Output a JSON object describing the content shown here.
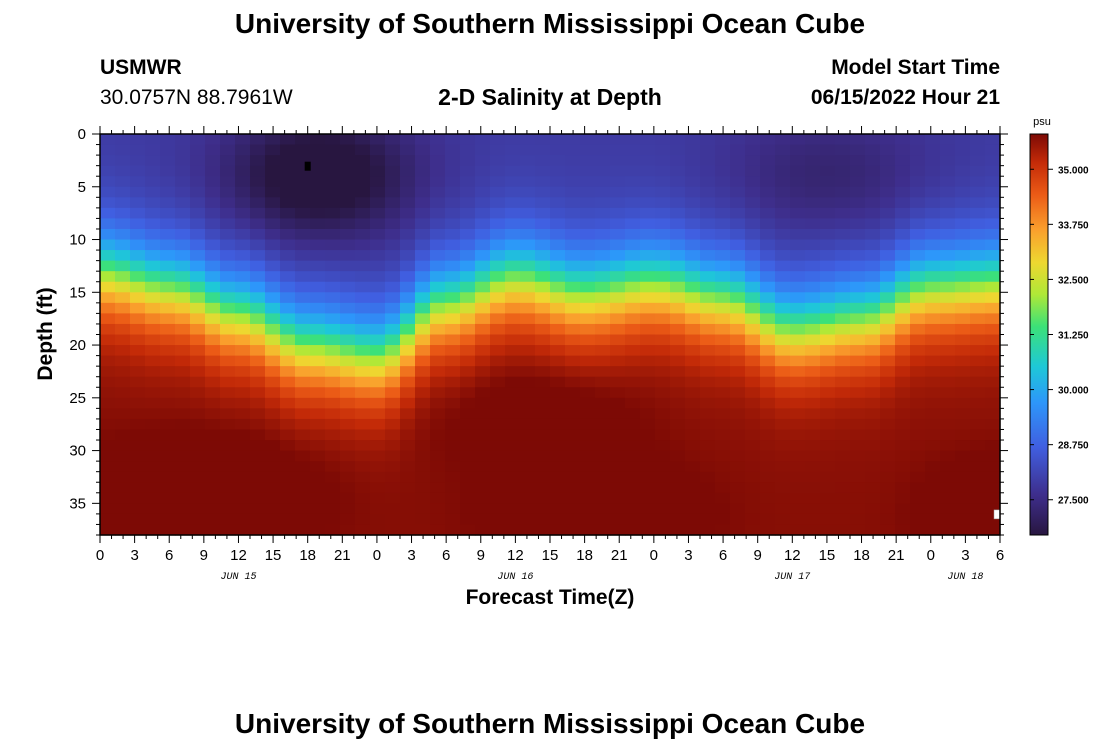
{
  "header": {
    "title": "University of Southern Mississippi Ocean Cube",
    "station_id": "USMWR",
    "coordinates": "30.0757N  88.7961W",
    "model_start_label": "Model Start Time",
    "model_start_value": "06/15/2022 Hour 21"
  },
  "footer": {
    "title": "University of Southern Mississippi Ocean Cube"
  },
  "colors": {
    "frame": "#000000",
    "low": "#2c1a4a",
    "mid_blue": "#3a7ff0",
    "mid_green": "#b8e43a",
    "high_orange": "#f07a1c",
    "max": "#8a0c05",
    "marker_dark": "#000000",
    "marker_light": "#ffffff"
  },
  "chart_data": {
    "type": "heatmap",
    "title": "2-D Salinity at Depth",
    "xlabel": "Forecast Time(Z)",
    "ylabel": "Depth (ft)",
    "x_ticks": [
      "0",
      "3",
      "6",
      "9",
      "12",
      "15",
      "18",
      "21",
      "0",
      "3",
      "6",
      "9",
      "12",
      "15",
      "18",
      "21",
      "0",
      "3",
      "6",
      "9",
      "12",
      "15",
      "18",
      "21",
      "0",
      "3",
      "6"
    ],
    "x_range_hours": [
      0,
      78
    ],
    "date_labels": [
      {
        "label": "JUN 15",
        "hour": 12
      },
      {
        "label": "JUN 16",
        "hour": 36
      },
      {
        "label": "JUN 17",
        "hour": 60
      },
      {
        "label": "JUN 18",
        "hour": 75
      }
    ],
    "y_ticks": [
      0,
      5,
      10,
      15,
      20,
      25,
      30,
      35
    ],
    "ylim": [
      0,
      38
    ],
    "y_inverted": true,
    "colorbar": {
      "unit": "psu",
      "ticks": [
        "35.000",
        "33.750",
        "32.500",
        "31.250",
        "30.000",
        "28.750",
        "27.500"
      ],
      "range": [
        26.7,
        35.8
      ]
    },
    "halocline_depth_ft": {
      "hours": [
        0,
        6,
        12,
        18,
        24,
        30,
        36,
        42,
        48,
        54,
        60,
        66,
        72,
        78
      ],
      "values": [
        13.0,
        14.5,
        17.0,
        20.0,
        21.0,
        16.0,
        13.5,
        15.0,
        14.0,
        15.5,
        18.5,
        17.5,
        14.5,
        14.0
      ]
    },
    "markers": [
      {
        "hour": 18,
        "depth": 3,
        "type": "dark"
      },
      {
        "hour": 78,
        "depth": 36,
        "type": "light"
      }
    ]
  }
}
